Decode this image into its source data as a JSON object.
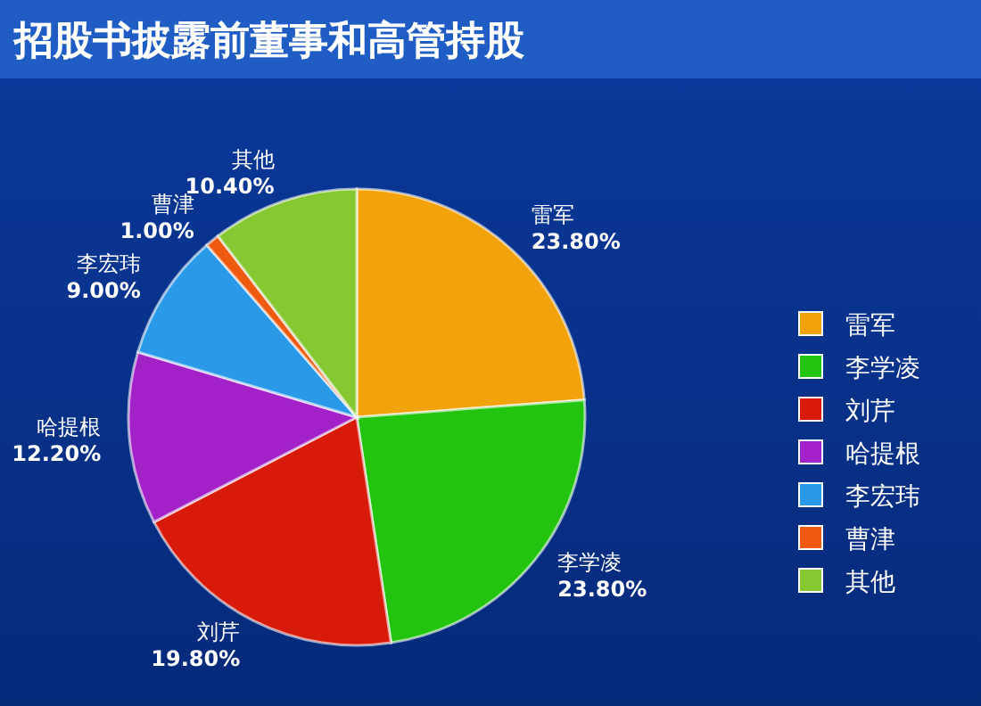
{
  "chart_data": {
    "type": "pie",
    "title": "招股书披露前董事和高管持股",
    "categories": [
      "雷军",
      "李学凌",
      "刘芹",
      "哈提根",
      "李宏玮",
      "曹津",
      "其他"
    ],
    "values": [
      23.8,
      23.8,
      19.8,
      12.2,
      9.0,
      1.0,
      10.4
    ],
    "value_labels": [
      "23.80%",
      "23.80%",
      "19.80%",
      "12.20%",
      "9.00%",
      "1.00%",
      "10.40%"
    ],
    "colors": [
      "#f2a20a",
      "#22c410",
      "#d81a0a",
      "#a322c8",
      "#2a9ae8",
      "#ee5a10",
      "#86c832"
    ],
    "legend": "right"
  }
}
